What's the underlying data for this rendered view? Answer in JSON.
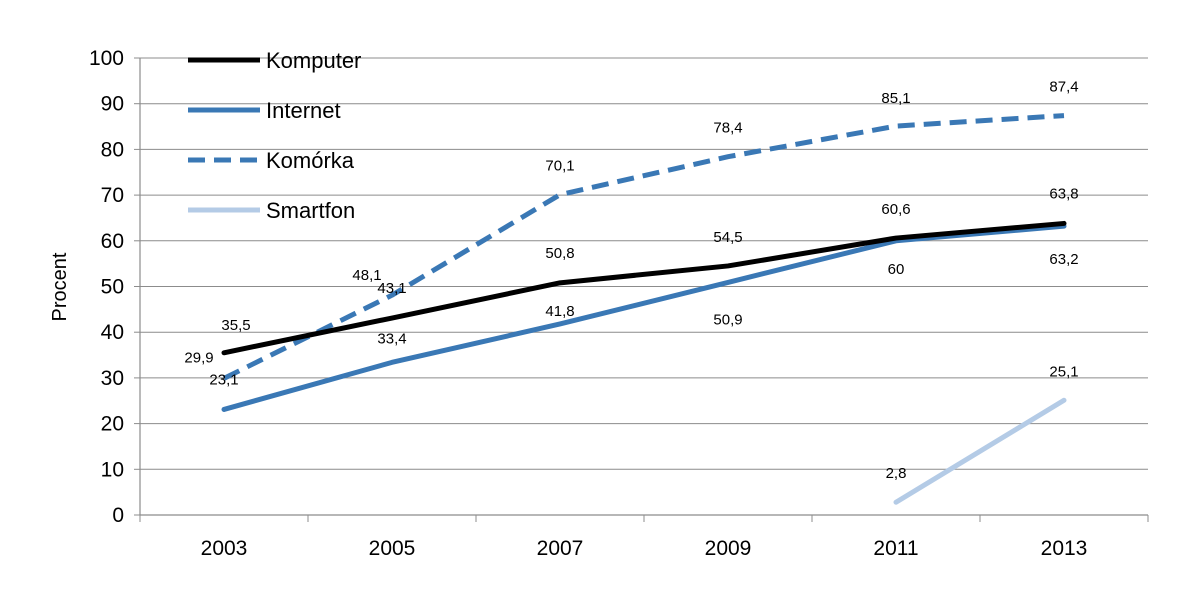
{
  "chart_data": {
    "type": "line",
    "title": "",
    "xlabel": "",
    "ylabel": "Procent",
    "ylim": [
      0,
      100
    ],
    "yticks": [
      0,
      10,
      20,
      30,
      40,
      50,
      60,
      70,
      80,
      90,
      100
    ],
    "categories": [
      "2003",
      "2005",
      "2007",
      "2009",
      "2011",
      "2013"
    ],
    "grid": "horizontal",
    "legend_position": "top-left",
    "series": [
      {
        "name": "Komputer",
        "color": "#000000",
        "style": "solid",
        "values": [
          35.5,
          43.1,
          50.8,
          54.5,
          60.6,
          63.8
        ],
        "labels": [
          "35,5",
          "43,1",
          "50,8",
          "54,5",
          "60,6",
          "63,8"
        ]
      },
      {
        "name": "Internet",
        "color": "#3a78b5",
        "style": "solid",
        "values": [
          23.1,
          33.4,
          41.8,
          50.9,
          60,
          63.2
        ],
        "labels": [
          "23,1",
          "33,4",
          "41,8",
          "50,9",
          "60",
          "63,2"
        ]
      },
      {
        "name": "Komórka",
        "color": "#3a78b5",
        "style": "dashed",
        "values": [
          29.9,
          48.1,
          70.1,
          78.4,
          85.1,
          87.4
        ],
        "labels": [
          "29,9",
          "48,1",
          "70,1",
          "78,4",
          "85,1",
          "87,4"
        ]
      },
      {
        "name": "Smartfon",
        "color": "#b4cbe6",
        "style": "solid",
        "values": [
          null,
          null,
          null,
          null,
          2.8,
          25.1
        ],
        "labels": [
          "",
          "",
          "",
          "",
          "2,8",
          "25,1"
        ]
      }
    ]
  }
}
